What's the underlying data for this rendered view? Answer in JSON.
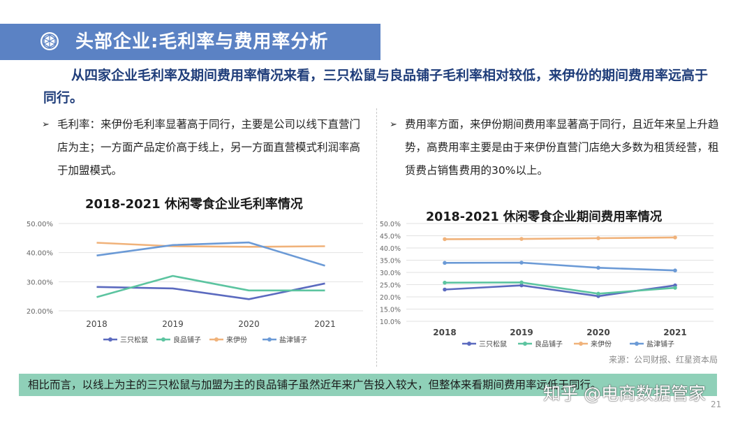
{
  "header": {
    "title": "头部企业:毛利率与费用率分析",
    "icon": "network-sphere-icon"
  },
  "headline": "从四家企业毛利率及期间费用率情况来看，三只松鼠与良品铺子毛利率相对较低，来伊份的期间费用率远高于同行。",
  "bullets": {
    "left": "毛利率：来伊份毛利率显著高于同行，主要是公司以线下直营门店为主；一方面产品定价高于线上，另一方面直营模式利润率高于加盟模式。",
    "right": "费用率方面，来伊份期间费用率显著高于同行，且近年来呈上升趋势，高费用率主要是由于来伊份直营门店绝大多数为租赁经营，租赁费占销售费用的30%以上。",
    "marker": "➢"
  },
  "chart_data": [
    {
      "type": "line",
      "title": "2018-2021 休闲零食企业毛利率情况",
      "categories": [
        "2018",
        "2019",
        "2020",
        "2021"
      ],
      "ylim": [
        20,
        50
      ],
      "yticks": [
        "20.00%",
        "30.00%",
        "40.00%",
        "50.00%"
      ],
      "ytick_values": [
        20,
        30,
        40,
        50
      ],
      "grid": true,
      "legend": "bottom",
      "series": [
        {
          "name": "三只松鼠",
          "values": [
            28.2,
            27.7,
            24.0,
            29.4
          ],
          "color": "#5b6abf"
        },
        {
          "name": "良品铺子",
          "values": [
            24.7,
            32.0,
            27.0,
            27.0
          ],
          "color": "#5cc4a0"
        },
        {
          "name": "来伊份",
          "values": [
            43.4,
            42.2,
            42.0,
            42.2
          ],
          "color": "#f0b27a"
        },
        {
          "name": "盐津铺子",
          "values": [
            39.0,
            42.6,
            43.5,
            35.5
          ],
          "color": "#6b9ad6"
        }
      ]
    },
    {
      "type": "line",
      "title": "2018-2021 休闲零食企业期间费用率情况",
      "categories": [
        "2018",
        "2019",
        "2020",
        "2021"
      ],
      "ylim": [
        10,
        50
      ],
      "yticks": [
        "10.0%",
        "15.0%",
        "20.0%",
        "25.0%",
        "30.0%",
        "35.0%",
        "40.0%",
        "45.0%",
        "50.0%"
      ],
      "ytick_values": [
        10,
        15,
        20,
        25,
        30,
        35,
        40,
        45,
        50
      ],
      "grid": true,
      "legend": "bottom",
      "series": [
        {
          "name": "三只松鼠",
          "values": [
            23.0,
            24.7,
            20.3,
            24.7
          ],
          "color": "#5b6abf"
        },
        {
          "name": "良品铺子",
          "values": [
            25.8,
            25.9,
            21.3,
            23.7
          ],
          "color": "#5cc4a0"
        },
        {
          "name": "来伊份",
          "values": [
            43.6,
            43.7,
            44.0,
            44.3
          ],
          "color": "#f0b27a"
        },
        {
          "name": "盐津铺子",
          "values": [
            33.9,
            34.0,
            31.9,
            30.8
          ],
          "color": "#6b9ad6"
        }
      ]
    }
  ],
  "source": "来源：公司财报、红星资本局",
  "footer": "相比而言，以线上为主的三只松鼠与加盟为主的良品铺子虽然近年来广告投入较大，但整体来看期间费用率远低于同行。",
  "watermark": "知乎 @电商数据管家",
  "page_number": "21"
}
